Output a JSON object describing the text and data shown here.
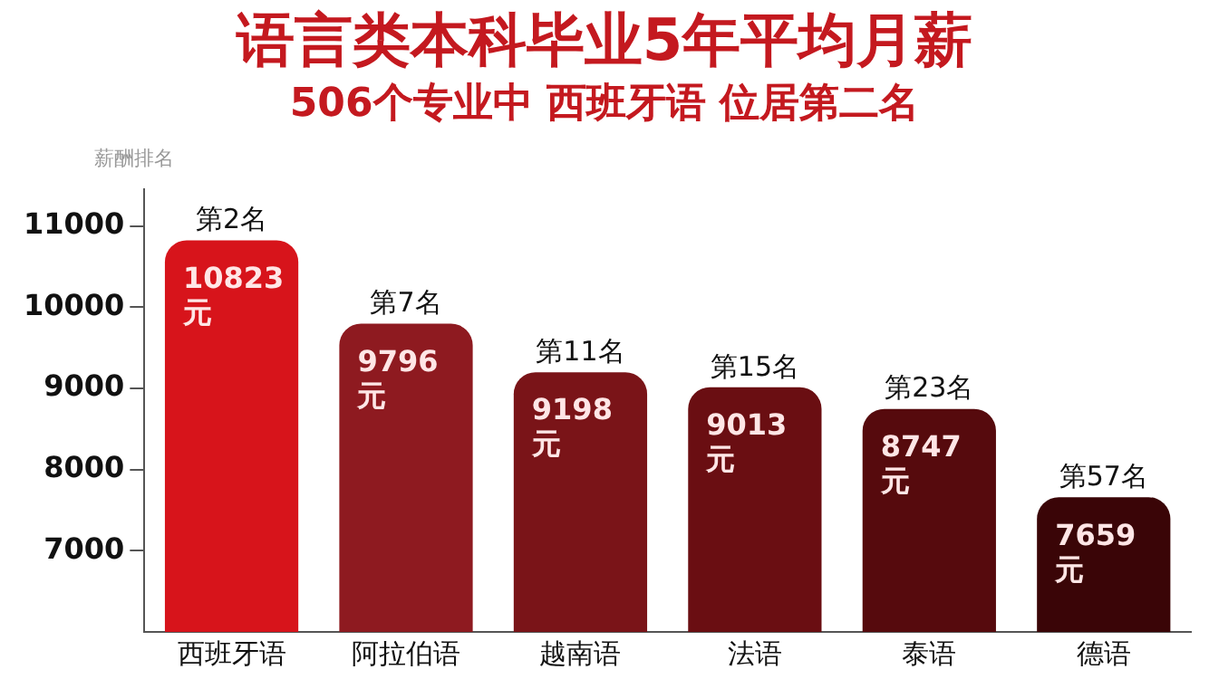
{
  "chart_data": {
    "type": "bar",
    "title": "语言类本科毕业5年平均月薪",
    "subtitle": "506个专业中  西班牙语  位居第二名",
    "ylabel": "薪酬排名",
    "categories": [
      "西班牙语",
      "阿拉伯语",
      "越南语",
      "法语",
      "泰语",
      "德语"
    ],
    "values": [
      10823,
      9796,
      9198,
      9013,
      8747,
      7659
    ],
    "colors": [
      "#d7141b",
      "#8e1a20",
      "#7a1418",
      "#6a0e12",
      "#560a0d",
      "#3a0507"
    ],
    "value_labels": [
      "10823\n元",
      "9796\n元",
      "9198\n元",
      "9013\n元",
      "8747\n元",
      "7659\n元"
    ],
    "annotations": [
      {
        "text": "第2名",
        "x": "西班牙语",
        "y": 10823
      },
      {
        "text": "第7名",
        "x": "阿拉伯语",
        "y": 9796
      },
      {
        "text": "第11名",
        "x": "越南语",
        "y": 9198
      },
      {
        "text": "第15名",
        "x": "法语",
        "y": 9013
      },
      {
        "text": "第23名",
        "x": "泰语",
        "y": 8747
      },
      {
        "text": "第57名",
        "x": "德语",
        "y": 7659
      }
    ],
    "ylim": [
      6000,
      11450
    ],
    "yticks": [
      7000,
      8000,
      9000,
      10000,
      11000
    ],
    "grid": false,
    "legend": false
  }
}
